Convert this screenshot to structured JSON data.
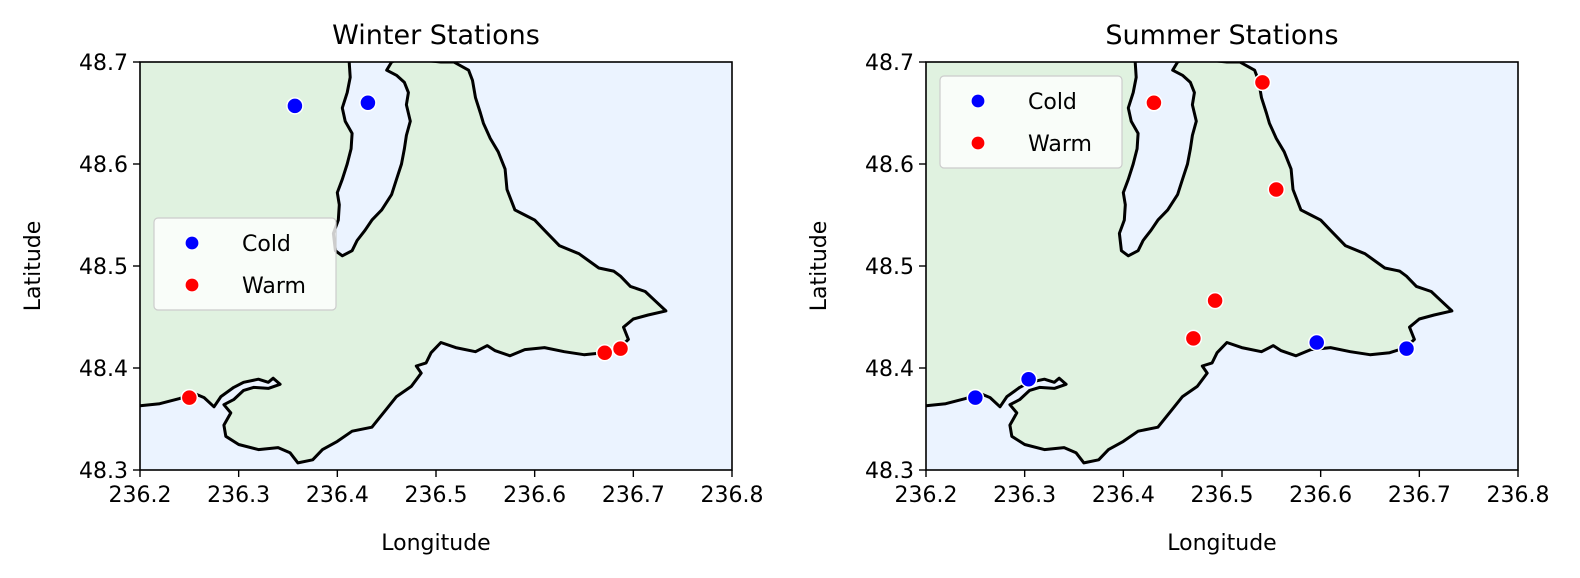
{
  "chart_data": [
    {
      "type": "scatter",
      "title": "Winter Stations",
      "xlabel": "Longitude",
      "ylabel": "Latitude",
      "xlim": [
        236.2,
        236.8
      ],
      "ylim": [
        48.3,
        48.7
      ],
      "xticks": [
        "236.2",
        "236.3",
        "236.4",
        "236.5",
        "236.6",
        "236.7",
        "236.8"
      ],
      "yticks": [
        "48.3",
        "48.4",
        "48.5",
        "48.6",
        "48.7"
      ],
      "grid": false,
      "legend_position": "center-left",
      "series": [
        {
          "name": "Cold",
          "color": "#0000ff",
          "points": [
            [
              236.357,
              48.657
            ],
            [
              236.431,
              48.66
            ]
          ]
        },
        {
          "name": "Warm",
          "color": "#ff0000",
          "points": [
            [
              236.25,
              48.371
            ],
            [
              236.671,
              48.415
            ],
            [
              236.687,
              48.419
            ]
          ]
        }
      ]
    },
    {
      "type": "scatter",
      "title": "Summer Stations",
      "xlabel": "Longitude",
      "ylabel": "Latitude",
      "xlim": [
        236.2,
        236.8
      ],
      "ylim": [
        48.3,
        48.7
      ],
      "xticks": [
        "236.2",
        "236.3",
        "236.4",
        "236.5",
        "236.6",
        "236.7",
        "236.8"
      ],
      "yticks": [
        "48.3",
        "48.4",
        "48.5",
        "48.6",
        "48.7"
      ],
      "grid": false,
      "legend_position": "upper-left",
      "series": [
        {
          "name": "Cold",
          "color": "#0000ff",
          "points": [
            [
              236.25,
              48.371
            ],
            [
              236.304,
              48.389
            ],
            [
              236.596,
              48.425
            ],
            [
              236.687,
              48.419
            ]
          ]
        },
        {
          "name": "Warm",
          "color": "#ff0000",
          "points": [
            [
              236.431,
              48.66
            ],
            [
              236.541,
              48.68
            ],
            [
              236.555,
              48.575
            ],
            [
              236.493,
              48.466
            ],
            [
              236.471,
              48.429
            ]
          ]
        }
      ]
    }
  ],
  "map_style": {
    "land_color": "#e0f2e0",
    "water_color": "#ebf3ff",
    "coastline_color": "#000000"
  }
}
